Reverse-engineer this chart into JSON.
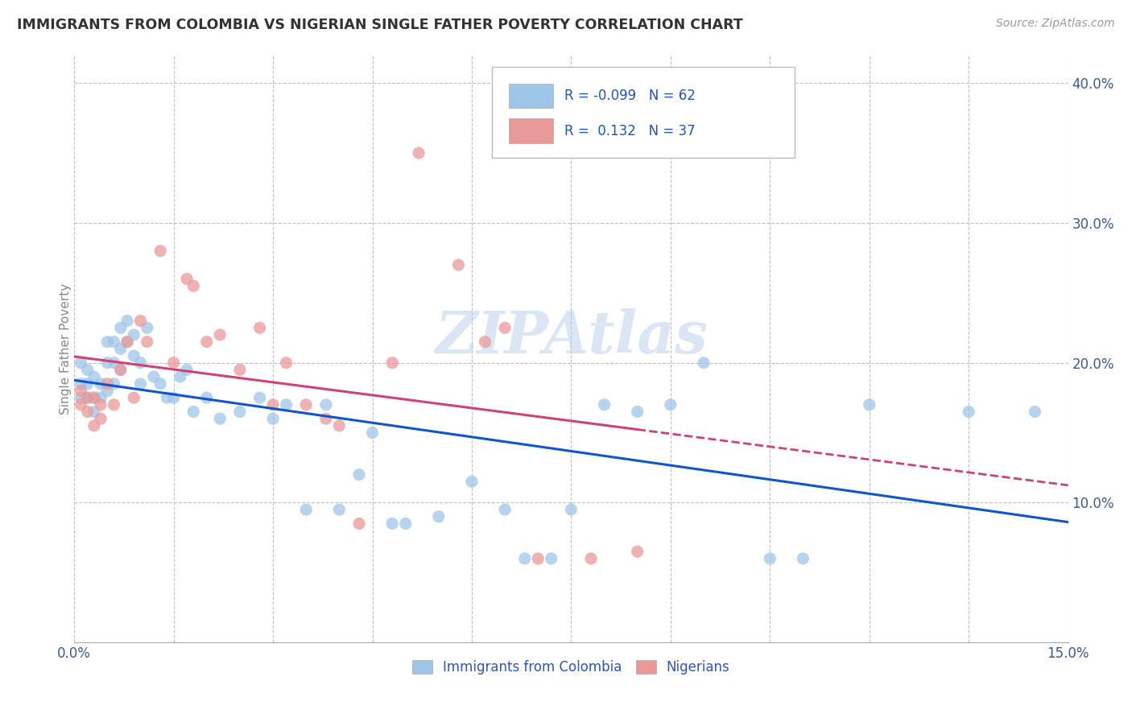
{
  "title": "IMMIGRANTS FROM COLOMBIA VS NIGERIAN SINGLE FATHER POVERTY CORRELATION CHART",
  "source": "Source: ZipAtlas.com",
  "ylabel": "Single Father Poverty",
  "watermark": "ZIPAtlas",
  "xlim": [
    0.0,
    0.15
  ],
  "ylim": [
    0.0,
    0.42
  ],
  "xticks": [
    0.0,
    0.015,
    0.03,
    0.045,
    0.06,
    0.075,
    0.09,
    0.105,
    0.12,
    0.135,
    0.15
  ],
  "ytick_positions": [
    0.0,
    0.1,
    0.2,
    0.3,
    0.4
  ],
  "ytick_labels": [
    "",
    "10.0%",
    "20.0%",
    "30.0%",
    "40.0%"
  ],
  "colombia_R": -0.099,
  "colombia_N": 62,
  "nigeria_R": 0.132,
  "nigeria_N": 37,
  "colombia_color": "#9fc5e8",
  "nigeria_color": "#ea9999",
  "colombia_line_color": "#1155cc",
  "nigeria_line_color": "#cc4477",
  "background_color": "#ffffff",
  "grid_color": "#c0c0c0",
  "colombia_x": [
    0.001,
    0.001,
    0.001,
    0.002,
    0.002,
    0.002,
    0.003,
    0.003,
    0.003,
    0.004,
    0.004,
    0.005,
    0.005,
    0.005,
    0.006,
    0.006,
    0.006,
    0.007,
    0.007,
    0.007,
    0.008,
    0.008,
    0.009,
    0.009,
    0.01,
    0.01,
    0.011,
    0.012,
    0.013,
    0.014,
    0.015,
    0.016,
    0.017,
    0.018,
    0.02,
    0.022,
    0.025,
    0.028,
    0.03,
    0.032,
    0.035,
    0.038,
    0.04,
    0.043,
    0.045,
    0.048,
    0.05,
    0.055,
    0.06,
    0.065,
    0.068,
    0.072,
    0.075,
    0.08,
    0.085,
    0.09,
    0.095,
    0.105,
    0.11,
    0.12,
    0.135,
    0.145
  ],
  "colombia_y": [
    0.175,
    0.185,
    0.2,
    0.175,
    0.185,
    0.195,
    0.165,
    0.175,
    0.19,
    0.175,
    0.185,
    0.18,
    0.2,
    0.215,
    0.185,
    0.2,
    0.215,
    0.21,
    0.225,
    0.195,
    0.215,
    0.23,
    0.205,
    0.22,
    0.185,
    0.2,
    0.225,
    0.19,
    0.185,
    0.175,
    0.175,
    0.19,
    0.195,
    0.165,
    0.175,
    0.16,
    0.165,
    0.175,
    0.16,
    0.17,
    0.095,
    0.17,
    0.095,
    0.12,
    0.15,
    0.085,
    0.085,
    0.09,
    0.115,
    0.095,
    0.06,
    0.06,
    0.095,
    0.17,
    0.165,
    0.17,
    0.2,
    0.06,
    0.06,
    0.17,
    0.165,
    0.165
  ],
  "nigeria_x": [
    0.001,
    0.001,
    0.002,
    0.002,
    0.003,
    0.003,
    0.004,
    0.004,
    0.005,
    0.006,
    0.007,
    0.008,
    0.009,
    0.01,
    0.011,
    0.013,
    0.015,
    0.017,
    0.018,
    0.02,
    0.022,
    0.025,
    0.028,
    0.03,
    0.032,
    0.035,
    0.038,
    0.04,
    0.043,
    0.048,
    0.052,
    0.058,
    0.062,
    0.065,
    0.07,
    0.078,
    0.085
  ],
  "nigeria_y": [
    0.17,
    0.18,
    0.165,
    0.175,
    0.155,
    0.175,
    0.17,
    0.16,
    0.185,
    0.17,
    0.195,
    0.215,
    0.175,
    0.23,
    0.215,
    0.28,
    0.2,
    0.26,
    0.255,
    0.215,
    0.22,
    0.195,
    0.225,
    0.17,
    0.2,
    0.17,
    0.16,
    0.155,
    0.085,
    0.2,
    0.35,
    0.27,
    0.215,
    0.225,
    0.06,
    0.06,
    0.065
  ]
}
